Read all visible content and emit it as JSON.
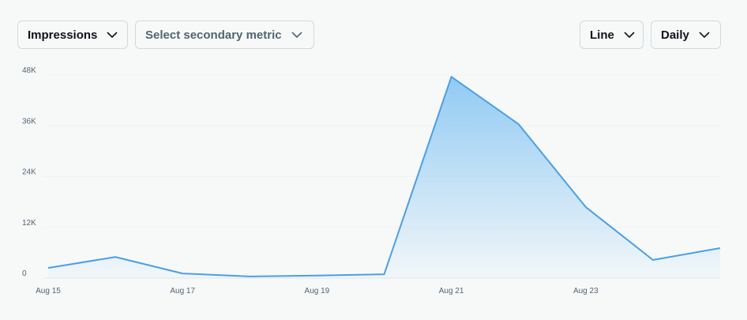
{
  "controls": [
    {
      "label": "Impressions"
    },
    {
      "label": "Select secondary metric"
    },
    {
      "label": "Line"
    },
    {
      "label": "Daily"
    }
  ],
  "chart_data": {
    "type": "line",
    "categories": [
      "Aug 15",
      null,
      "Aug 17",
      null,
      "Aug 19",
      null,
      "Aug 21",
      null,
      "Aug 23",
      null,
      null
    ],
    "series": [
      {
        "name": "Impressions",
        "color": "#4a9fe6",
        "values": [
          2400,
          5000,
          1100,
          400,
          600,
          900,
          47600,
          36400,
          16800,
          4300,
          7100
        ]
      }
    ],
    "ylim": [
      0,
      48000
    ],
    "yticks": [
      0,
      {
        "value": 12000,
        "label": "12K"
      },
      {
        "value": 24000,
        "label": "24K"
      },
      {
        "value": 36000,
        "label": "36K"
      },
      {
        "value": 48000,
        "label": "48K"
      }
    ],
    "grid": true,
    "area_fill": true
  }
}
